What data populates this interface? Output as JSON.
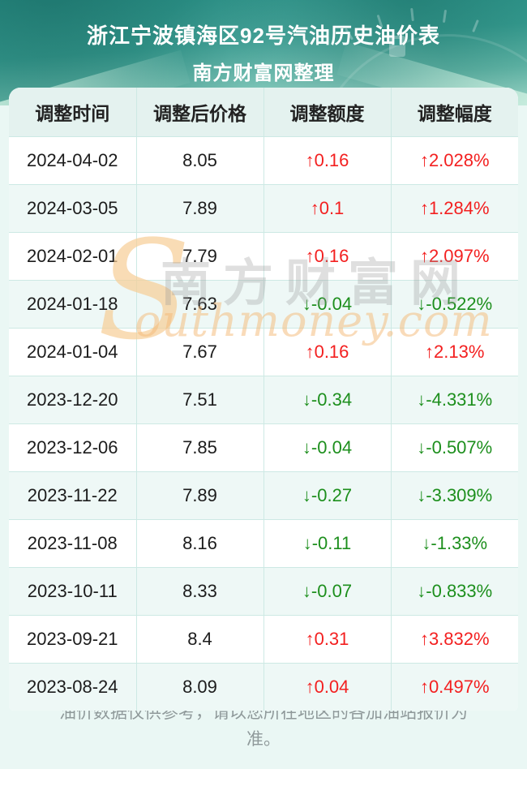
{
  "header": {
    "title": "浙江宁波镇海区92号汽油历史油价表",
    "subtitle": "南方财富网整理"
  },
  "chart_data": {
    "type": "table",
    "title": "浙江宁波镇海区92号汽油历史油价表",
    "subtitle": "南方财富网整理",
    "columns": [
      "调整时间",
      "调整后价格",
      "调整额度",
      "调整幅度"
    ],
    "rows": [
      {
        "date": "2024-04-02",
        "price": "8.05",
        "change": "↑0.16",
        "rate": "↑2.028%",
        "trend": "up"
      },
      {
        "date": "2024-03-05",
        "price": "7.89",
        "change": "↑0.1",
        "rate": "↑1.284%",
        "trend": "up"
      },
      {
        "date": "2024-02-01",
        "price": "7.79",
        "change": "↑0.16",
        "rate": "↑2.097%",
        "trend": "up"
      },
      {
        "date": "2024-01-18",
        "price": "7.63",
        "change": "↓-0.04",
        "rate": "↓-0.522%",
        "trend": "down"
      },
      {
        "date": "2024-01-04",
        "price": "7.67",
        "change": "↑0.16",
        "rate": "↑2.13%",
        "trend": "up"
      },
      {
        "date": "2023-12-20",
        "price": "7.51",
        "change": "↓-0.34",
        "rate": "↓-4.331%",
        "trend": "down"
      },
      {
        "date": "2023-12-06",
        "price": "7.85",
        "change": "↓-0.04",
        "rate": "↓-0.507%",
        "trend": "down"
      },
      {
        "date": "2023-11-22",
        "price": "7.89",
        "change": "↓-0.27",
        "rate": "↓-3.309%",
        "trend": "down"
      },
      {
        "date": "2023-11-08",
        "price": "8.16",
        "change": "↓-0.11",
        "rate": "↓-1.33%",
        "trend": "down"
      },
      {
        "date": "2023-10-11",
        "price": "8.33",
        "change": "↓-0.07",
        "rate": "↓-0.833%",
        "trend": "down"
      },
      {
        "date": "2023-09-21",
        "price": "8.4",
        "change": "↑0.31",
        "rate": "↑3.832%",
        "trend": "up"
      },
      {
        "date": "2023-08-24",
        "price": "8.09",
        "change": "↑0.04",
        "rate": "↑0.497%",
        "trend": "up"
      }
    ]
  },
  "watermark": {
    "swoosh": "S",
    "cn": "南方财富网",
    "en": "outhmoney.com"
  },
  "footer_note": {
    "line1": "油价数据仅供参考，请以您所在地区的各加油站报价为",
    "line2": "准。"
  },
  "colors": {
    "banner_teal": "#2b948a",
    "page_mint": "#eaf7f4",
    "header_row": "#e4f2ef",
    "alt_row": "#eef8f6",
    "grid_line": "#cde9e4",
    "up_red": "#f32020",
    "down_green": "#1d8f1d",
    "watermark_orange": "#f4ba78"
  }
}
